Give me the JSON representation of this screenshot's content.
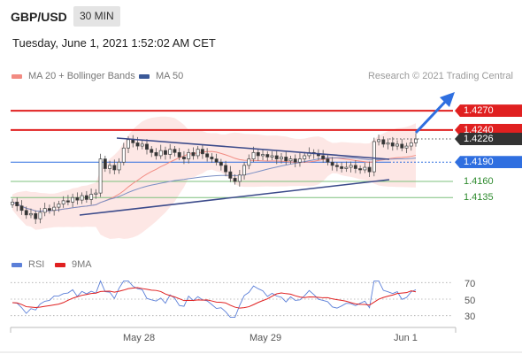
{
  "header": {
    "pair": "GBP/USD",
    "timeframe": "30 MIN",
    "timestamp": "Tuesday, June 1, 2021 1:52:02 AM CET",
    "credit": "Research © 2021 Trading Central"
  },
  "legend": {
    "ma20": "MA 20 + Bollinger Bands",
    "ma50": "MA 50",
    "rsi": "RSI",
    "ma9": "9MA",
    "ma20_color": "#f28b82",
    "ma50_color": "#3b5998",
    "rsi_color": "#5b7fd8",
    "ma9_color": "#e02020"
  },
  "price_levels": [
    {
      "value": "1.4270",
      "color": "#e02020",
      "style": "filled"
    },
    {
      "value": "1.4240",
      "color": "#e02020",
      "style": "filled"
    },
    {
      "value": "1.4226",
      "color": "#333333",
      "style": "filled"
    },
    {
      "value": "1.4190",
      "color": "#2f6fe0",
      "style": "filled"
    },
    {
      "value": "1.4160",
      "color": "#2e8b2e",
      "style": "plain"
    },
    {
      "value": "1.4135",
      "color": "#2e8b2e",
      "style": "plain"
    }
  ],
  "rsi_levels": [
    "70",
    "50",
    "30"
  ],
  "x_labels": [
    "May 28",
    "May 29",
    "Jun 1"
  ],
  "chart_data": {
    "type": "candlestick",
    "title": "GBP/USD",
    "timeframe": "30 MIN",
    "x_ticks": [
      "May 28",
      "May 29",
      "Jun 1"
    ],
    "y_range": [
      1.405,
      1.431
    ],
    "support_resistance": [
      1.427,
      1.424,
      1.4226,
      1.419,
      1.416,
      1.4135
    ],
    "last_price": 1.4226,
    "close_series": [
      1.4128,
      1.4122,
      1.4115,
      1.4108,
      1.411,
      1.4102,
      1.4112,
      1.4118,
      1.4115,
      1.412,
      1.4125,
      1.413,
      1.4128,
      1.4135,
      1.4131,
      1.4138,
      1.4132,
      1.414,
      1.4142,
      1.4195,
      1.418,
      1.4185,
      1.4178,
      1.419,
      1.4212,
      1.4225,
      1.422,
      1.4215,
      1.4218,
      1.421,
      1.4205,
      1.42,
      1.4208,
      1.4202,
      1.421,
      1.4205,
      1.4198,
      1.4195,
      1.4205,
      1.42,
      1.421,
      1.4203,
      1.4198,
      1.4195,
      1.419,
      1.4185,
      1.4175,
      1.4165,
      1.416,
      1.417,
      1.4185,
      1.4195,
      1.4205,
      1.42,
      1.4202,
      1.4198,
      1.42,
      1.4195,
      1.4198,
      1.4192,
      1.4195,
      1.419,
      1.4195,
      1.42,
      1.4205,
      1.4203,
      1.42,
      1.4195,
      1.419,
      1.4185,
      1.4183,
      1.418,
      1.4182,
      1.4185,
      1.418,
      1.4178,
      1.4182,
      1.4175,
      1.4222,
      1.4225,
      1.4218,
      1.422,
      1.4215,
      1.4218,
      1.4212,
      1.4215,
      1.422,
      1.4226
    ],
    "rsi": {
      "name": "RSI",
      "levels": [
        70,
        50,
        30
      ]
    },
    "annotations": [
      "resistance trendline",
      "support trendline",
      "bullish target arrow"
    ]
  }
}
